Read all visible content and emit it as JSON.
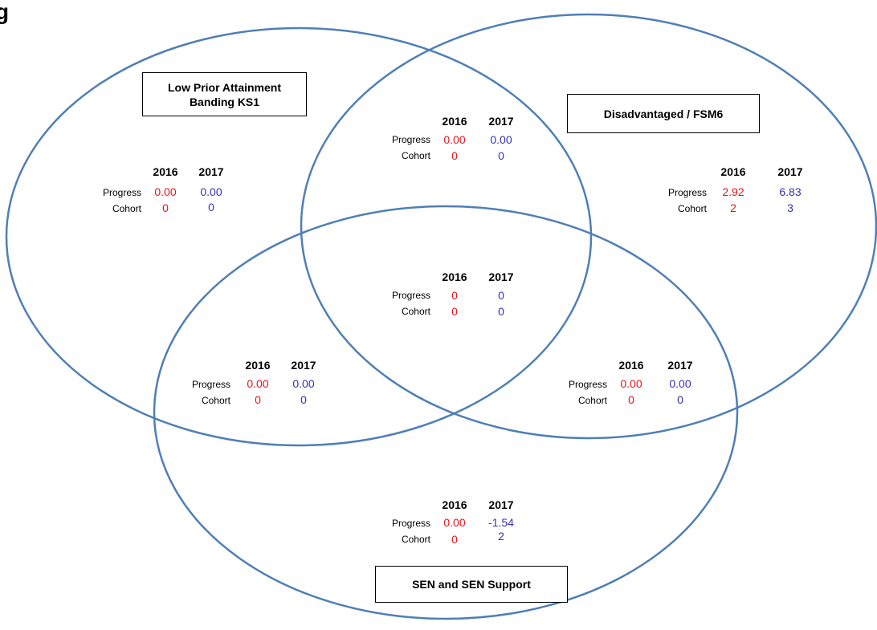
{
  "heading_letter": "g",
  "colors": {
    "circle_stroke": "#4f7fb6",
    "year_2016": "#e8141b",
    "year_2017": "#3430b8"
  },
  "sets": {
    "low_prior": {
      "label": "Low Prior Attainment Banding KS1"
    },
    "disadvantaged": {
      "label": "Disadvantaged / FSM6"
    },
    "sen": {
      "label": "SEN and SEN Support"
    }
  },
  "regions": {
    "low_prior_only": {
      "y2016": "2016",
      "y2017": "2017",
      "progress_label": "Progress",
      "cohort_label": "Cohort",
      "progress_2016": "0.00",
      "progress_2017": "0.00",
      "cohort_2016": "0",
      "cohort_2017": "0"
    },
    "low_prior_and_disadvantaged": {
      "y2016": "2016",
      "y2017": "2017",
      "progress_label": "Progress",
      "cohort_label": "Cohort",
      "progress_2016": "0.00",
      "progress_2017": "0.00",
      "cohort_2016": "0",
      "cohort_2017": "0"
    },
    "disadvantaged_only": {
      "y2016": "2016",
      "y2017": "2017",
      "progress_label": "Progress",
      "cohort_label": "Cohort",
      "progress_2016": "2.92",
      "progress_2017": "6.83",
      "cohort_2016": "2",
      "cohort_2017": "3"
    },
    "all_three": {
      "y2016": "2016",
      "y2017": "2017",
      "progress_label": "Progress",
      "cohort_label": "Cohort",
      "progress_2016": "0",
      "progress_2017": "0",
      "cohort_2016": "0",
      "cohort_2017": "0"
    },
    "low_prior_and_sen": {
      "y2016": "2016",
      "y2017": "2017",
      "progress_label": "Progress",
      "cohort_label": "Cohort",
      "progress_2016": "0.00",
      "progress_2017": "0.00",
      "cohort_2016": "0",
      "cohort_2017": "0"
    },
    "disadvantaged_and_sen": {
      "y2016": "2016",
      "y2017": "2017",
      "progress_label": "Progress",
      "cohort_label": "Cohort",
      "progress_2016": "0.00",
      "progress_2017": "0.00",
      "cohort_2016": "0",
      "cohort_2017": "0"
    },
    "sen_only": {
      "y2016": "2016",
      "y2017": "2017",
      "progress_label": "Progress",
      "cohort_label": "Cohort",
      "progress_2016": "0.00",
      "progress_2017": "-1.54",
      "cohort_2016": "0",
      "cohort_2017": "2"
    }
  }
}
